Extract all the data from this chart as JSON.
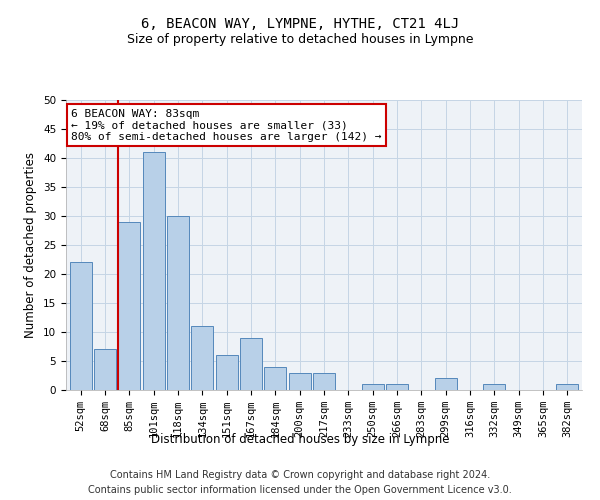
{
  "title": "6, BEACON WAY, LYMPNE, HYTHE, CT21 4LJ",
  "subtitle": "Size of property relative to detached houses in Lympne",
  "xlabel": "Distribution of detached houses by size in Lympne",
  "ylabel": "Number of detached properties",
  "categories": [
    "52sqm",
    "68sqm",
    "85sqm",
    "101sqm",
    "118sqm",
    "134sqm",
    "151sqm",
    "167sqm",
    "184sqm",
    "200sqm",
    "217sqm",
    "233sqm",
    "250sqm",
    "266sqm",
    "283sqm",
    "299sqm",
    "316sqm",
    "332sqm",
    "349sqm",
    "365sqm",
    "382sqm"
  ],
  "values": [
    22,
    7,
    29,
    41,
    30,
    11,
    6,
    9,
    4,
    3,
    3,
    0,
    1,
    1,
    0,
    2,
    0,
    1,
    0,
    0,
    1
  ],
  "bar_color": "#b8d0e8",
  "bar_edge_color": "#5588bb",
  "annotation_text": "6 BEACON WAY: 83sqm\n← 19% of detached houses are smaller (33)\n80% of semi-detached houses are larger (142) →",
  "annotation_box_color": "#ffffff",
  "annotation_box_edge_color": "#cc0000",
  "highlight_line_color": "#cc0000",
  "ylim": [
    0,
    50
  ],
  "yticks": [
    0,
    5,
    10,
    15,
    20,
    25,
    30,
    35,
    40,
    45,
    50
  ],
  "footer1": "Contains HM Land Registry data © Crown copyright and database right 2024.",
  "footer2": "Contains public sector information licensed under the Open Government Licence v3.0.",
  "bg_color": "#eef2f7",
  "grid_color": "#c5d5e5",
  "title_fontsize": 10,
  "subtitle_fontsize": 9,
  "axis_label_fontsize": 8.5,
  "tick_fontsize": 7.5,
  "annotation_fontsize": 8,
  "footer_fontsize": 7
}
